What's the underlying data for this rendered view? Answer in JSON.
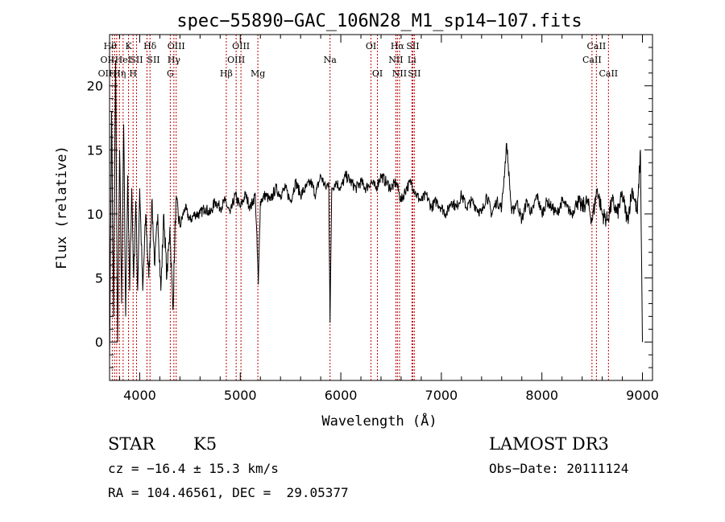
{
  "chart_data": {
    "type": "line",
    "title": "spec−55890−GAC_106N28_M1_sp14−107.fits",
    "xlabel": "Wavelength (Å)",
    "ylabel": "Flux (relative)",
    "xlim": [
      3700,
      9100
    ],
    "ylim": [
      -3,
      24
    ],
    "xticks": [
      4000,
      5000,
      6000,
      7000,
      8000,
      9000
    ],
    "yticks": [
      0,
      5,
      10,
      15,
      20
    ],
    "xtick_labels": [
      "4000",
      "5000",
      "6000",
      "7000",
      "8000",
      "9000"
    ],
    "ytick_labels": [
      "0",
      "5",
      "10",
      "15",
      "20"
    ],
    "grid": false,
    "line_color": "#000000",
    "marker_color": "#c00000",
    "series": [
      {
        "name": "flux",
        "x": [
          3700,
          3720,
          3740,
          3760,
          3780,
          3800,
          3820,
          3840,
          3860,
          3880,
          3900,
          3920,
          3940,
          3960,
          3980,
          4000,
          4030,
          4060,
          4090,
          4120,
          4150,
          4180,
          4210,
          4240,
          4270,
          4300,
          4330,
          4360,
          4400,
          4450,
          4500,
          4550,
          4600,
          4650,
          4700,
          4750,
          4800,
          4850,
          4900,
          4950,
          5000,
          5050,
          5100,
          5150,
          5180,
          5200,
          5250,
          5300,
          5350,
          5400,
          5450,
          5500,
          5550,
          5600,
          5650,
          5700,
          5750,
          5800,
          5850,
          5880,
          5893,
          5910,
          5950,
          6000,
          6050,
          6100,
          6150,
          6200,
          6250,
          6300,
          6350,
          6400,
          6450,
          6500,
          6550,
          6600,
          6650,
          6700,
          6750,
          6800,
          6850,
          6900,
          6950,
          7000,
          7050,
          7100,
          7150,
          7200,
          7250,
          7300,
          7350,
          7400,
          7450,
          7500,
          7550,
          7600,
          7650,
          7700,
          7750,
          7800,
          7850,
          7900,
          7950,
          8000,
          8050,
          8100,
          8150,
          8200,
          8250,
          8300,
          8350,
          8400,
          8450,
          8500,
          8550,
          8600,
          8650,
          8700,
          8750,
          8800,
          8850,
          8900,
          8950,
          8980,
          9000
        ],
        "values": [
          -1.5,
          18.0,
          2.0,
          22.0,
          0.0,
          15.0,
          3.0,
          17.0,
          2.0,
          13.0,
          4.0,
          12.0,
          5.0,
          11.0,
          4.0,
          12.0,
          4.0,
          10.0,
          5.0,
          11.0,
          6.0,
          10.0,
          4.0,
          10.0,
          5.0,
          9.0,
          2.5,
          11.0,
          9.0,
          10.5,
          9.5,
          10.0,
          10.0,
          10.5,
          10.0,
          11.0,
          10.5,
          11.0,
          10.0,
          11.5,
          10.5,
          11.5,
          10.5,
          11.5,
          4.5,
          11.0,
          11.5,
          11.0,
          12.0,
          11.5,
          12.0,
          11.0,
          12.5,
          11.5,
          12.0,
          12.5,
          11.5,
          13.0,
          12.0,
          12.5,
          1.5,
          12.0,
          12.5,
          12.0,
          13.0,
          12.5,
          12.0,
          12.5,
          12.0,
          12.5,
          12.0,
          13.0,
          12.5,
          12.0,
          12.5,
          11.0,
          12.0,
          12.5,
          11.5,
          11.0,
          11.5,
          10.5,
          11.0,
          10.5,
          10.0,
          11.0,
          10.5,
          11.5,
          10.5,
          11.0,
          10.5,
          10.0,
          11.5,
          10.0,
          11.0,
          10.5,
          15.5,
          10.0,
          11.0,
          9.5,
          11.0,
          10.0,
          11.5,
          10.0,
          11.0,
          10.5,
          10.0,
          11.0,
          10.5,
          10.0,
          11.0,
          10.5,
          11.0,
          9.5,
          12.0,
          10.0,
          9.5,
          11.0,
          10.0,
          11.5,
          9.5,
          12.0,
          10.0,
          15.0,
          0.0
        ]
      }
    ],
    "lines": [
      {
        "wave": 3727,
        "label": "OII",
        "row": 2,
        "align": "end"
      },
      {
        "wave": 3750,
        "label": "OII",
        "row": 1,
        "align": "end"
      },
      {
        "wave": 3771,
        "label": "Hθ",
        "row": 0,
        "align": "end"
      },
      {
        "wave": 3798,
        "label": "Hη",
        "row": 2,
        "align": "middle"
      },
      {
        "wave": 3835,
        "label": "HeI",
        "row": 1,
        "align": "middle"
      },
      {
        "wave": 3889,
        "label": "K",
        "row": 0,
        "align": "middle"
      },
      {
        "wave": 3934,
        "label": "H",
        "row": 2,
        "align": "middle"
      },
      {
        "wave": 3968,
        "label": "SII",
        "row": 1,
        "align": "middle"
      },
      {
        "wave": 4072,
        "label": "SII",
        "row": 1,
        "align": "start"
      },
      {
        "wave": 4102,
        "label": "Hδ",
        "row": 0,
        "align": "middle"
      },
      {
        "wave": 4304,
        "label": "G",
        "row": 2,
        "align": "middle"
      },
      {
        "wave": 4340,
        "label": "Hγ",
        "row": 1,
        "align": "middle"
      },
      {
        "wave": 4363,
        "label": "OIII",
        "row": 0,
        "align": "middle"
      },
      {
        "wave": 4861,
        "label": "Hβ",
        "row": 2,
        "align": "middle"
      },
      {
        "wave": 4959,
        "label": "OIII",
        "row": 1,
        "align": "middle"
      },
      {
        "wave": 5007,
        "label": "OIII",
        "row": 0,
        "align": "middle"
      },
      {
        "wave": 5175,
        "label": "Mg",
        "row": 2,
        "align": "middle"
      },
      {
        "wave": 5893,
        "label": "Na",
        "row": 1,
        "align": "middle"
      },
      {
        "wave": 6300,
        "label": "OI",
        "row": 0,
        "align": "middle"
      },
      {
        "wave": 6364,
        "label": "OI",
        "row": 2,
        "align": "middle"
      },
      {
        "wave": 6548,
        "label": "NII",
        "row": 1,
        "align": "middle"
      },
      {
        "wave": 6563,
        "label": "Hα",
        "row": 0,
        "align": "middle"
      },
      {
        "wave": 6584,
        "label": "NII",
        "row": 2,
        "align": "middle"
      },
      {
        "wave": 6707,
        "label": "Li",
        "row": 1,
        "align": "middle"
      },
      {
        "wave": 6716,
        "label": "SII",
        "row": 0,
        "align": "middle"
      },
      {
        "wave": 6731,
        "label": "SII",
        "row": 2,
        "align": "middle"
      },
      {
        "wave": 8498,
        "label": "CaII",
        "row": 1,
        "align": "middle"
      },
      {
        "wave": 8542,
        "label": "CaII",
        "row": 0,
        "align": "middle"
      },
      {
        "wave": 8662,
        "label": "CaII",
        "row": 2,
        "align": "middle"
      }
    ]
  },
  "info": {
    "class_text": "STAR",
    "subclass_text": "K5",
    "survey_text": "LAMOST DR3",
    "cz_text": "cz = −16.4 ± 15.3 km/s",
    "obsdate_text": "Obs−Date: 20111124",
    "radec_text": "RA = 104.46561, DEC =  29.05377"
  }
}
